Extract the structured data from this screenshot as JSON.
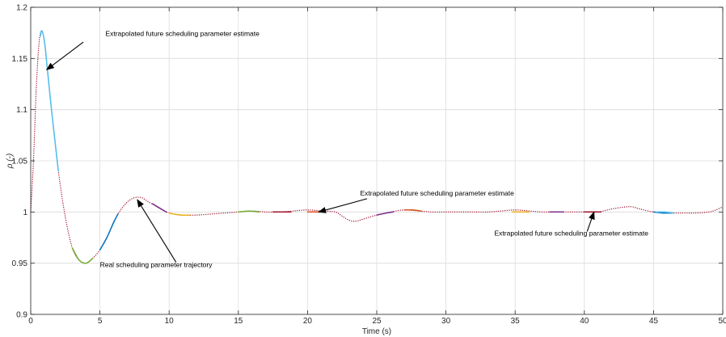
{
  "chart_data": {
    "type": "line",
    "title": "",
    "xlabel": "Time (s)",
    "ylabel": "ρ (-)",
    "xlim": [
      0,
      50
    ],
    "ylim": [
      0.9,
      1.2
    ],
    "xticks": [
      0,
      5,
      10,
      15,
      20,
      25,
      30,
      35,
      40,
      45,
      50
    ],
    "yticks": [
      0.9,
      0.95,
      1,
      1.05,
      1.1,
      1.15,
      1.2
    ],
    "grid": true,
    "legend": "none",
    "series": [
      {
        "name": "",
        "color": "#a2142f",
        "style": "dotted",
        "points": [
          [
            0,
            1.0
          ],
          [
            0.2,
            1.05
          ],
          [
            0.4,
            1.12
          ],
          [
            0.6,
            1.165
          ],
          [
            0.8,
            1.177
          ],
          [
            1.0,
            1.165
          ],
          [
            1.2,
            1.14
          ],
          [
            1.5,
            1.1
          ],
          [
            2.0,
            1.04
          ],
          [
            2.5,
            0.995
          ],
          [
            3.0,
            0.965
          ],
          [
            3.5,
            0.953
          ],
          [
            4.0,
            0.95
          ],
          [
            4.5,
            0.955
          ],
          [
            5.0,
            0.963
          ],
          [
            5.5,
            0.975
          ],
          [
            6.0,
            0.99
          ],
          [
            6.5,
            1.002
          ],
          [
            7.0,
            1.01
          ],
          [
            7.5,
            1.014
          ],
          [
            8.0,
            1.014
          ],
          [
            8.5,
            1.01
          ],
          [
            9.0,
            1.006
          ],
          [
            9.5,
            1.002
          ],
          [
            10.0,
            0.999
          ],
          [
            11.0,
            0.997
          ],
          [
            12.0,
            0.997
          ],
          [
            13.0,
            0.998
          ],
          [
            14.0,
            0.999
          ],
          [
            15.0,
            1.0
          ],
          [
            16.0,
            1.001
          ],
          [
            17.0,
            1.0
          ],
          [
            18.0,
            1.0
          ],
          [
            19.0,
            1.001
          ],
          [
            20.0,
            1.002
          ],
          [
            21.0,
            1.001
          ],
          [
            22.0,
            1.0
          ],
          [
            22.5,
            0.996
          ],
          [
            23.0,
            0.992
          ],
          [
            23.5,
            0.991
          ],
          [
            24.0,
            0.993
          ],
          [
            25.0,
            0.997
          ],
          [
            26.0,
            1.0
          ],
          [
            27.0,
            1.002
          ],
          [
            28.0,
            1.001
          ],
          [
            29.0,
            1.0
          ],
          [
            30.0,
            1.0
          ],
          [
            31.0,
            1.0
          ],
          [
            32.0,
            1.0
          ],
          [
            33.0,
            1.0
          ],
          [
            34.0,
            1.001
          ],
          [
            35.0,
            1.002
          ],
          [
            36.0,
            1.001
          ],
          [
            37.0,
            1.0
          ],
          [
            38.0,
            1.0
          ],
          [
            39.0,
            1.0
          ],
          [
            40.0,
            1.0
          ],
          [
            41.0,
            1.0
          ],
          [
            42.0,
            1.003
          ],
          [
            43.0,
            1.005
          ],
          [
            43.5,
            1.005
          ],
          [
            44.0,
            1.003
          ],
          [
            45.0,
            1.0
          ],
          [
            46.0,
            0.999
          ],
          [
            47.0,
            0.999
          ],
          [
            48.0,
            0.999
          ],
          [
            49.0,
            1.0
          ],
          [
            49.5,
            1.002
          ],
          [
            50.0,
            1.005
          ]
        ]
      },
      {
        "name": "",
        "color": "#4dbeee",
        "style": "solid",
        "points": [
          [
            0.7,
            1.172
          ],
          [
            0.8,
            1.177
          ],
          [
            1.0,
            1.166
          ],
          [
            1.2,
            1.14
          ],
          [
            1.5,
            1.1
          ],
          [
            2.0,
            1.04
          ]
        ]
      },
      {
        "name": "",
        "color": "#77ac30",
        "style": "solid",
        "points": [
          [
            3.0,
            0.965
          ],
          [
            3.5,
            0.953
          ],
          [
            4.0,
            0.95
          ],
          [
            4.5,
            0.955
          ]
        ]
      },
      {
        "name": "",
        "color": "#0072bd",
        "style": "solid",
        "points": [
          [
            5.0,
            0.963
          ],
          [
            5.5,
            0.975
          ],
          [
            6.0,
            0.99
          ],
          [
            6.3,
            0.998
          ]
        ]
      },
      {
        "name": "",
        "color": "#7e2f8e",
        "style": "solid",
        "points": [
          [
            8.8,
            1.008
          ],
          [
            9.3,
            1.004
          ],
          [
            9.8,
            1.0
          ]
        ]
      },
      {
        "name": "",
        "color": "#edb120",
        "style": "solid",
        "points": [
          [
            10.0,
            0.999
          ],
          [
            10.8,
            0.997
          ],
          [
            11.5,
            0.997
          ]
        ]
      },
      {
        "name": "",
        "color": "#77ac30",
        "style": "solid",
        "points": [
          [
            15.0,
            1.0
          ],
          [
            15.8,
            1.001
          ],
          [
            16.5,
            1.0
          ]
        ]
      },
      {
        "name": "",
        "color": "#a2142f",
        "style": "solid",
        "points": [
          [
            17.5,
            1.0
          ],
          [
            18.2,
            1.0
          ],
          [
            18.8,
            1.0
          ]
        ]
      },
      {
        "name": "",
        "color": "#d95319",
        "style": "solid",
        "points": [
          [
            20.0,
            1.0
          ],
          [
            20.5,
            1.0
          ],
          [
            21.0,
            1.0
          ]
        ]
      },
      {
        "name": "",
        "color": "#7e2f8e",
        "style": "solid",
        "points": [
          [
            25.0,
            0.997
          ],
          [
            25.7,
            0.999
          ],
          [
            26.2,
            1.0
          ]
        ]
      },
      {
        "name": "",
        "color": "#d95319",
        "style": "solid",
        "points": [
          [
            27.0,
            1.002
          ],
          [
            27.6,
            1.002
          ],
          [
            28.2,
            1.001
          ]
        ]
      },
      {
        "name": "",
        "color": "#edb120",
        "style": "solid",
        "points": [
          [
            34.8,
            1.0
          ],
          [
            35.5,
            1.0
          ],
          [
            36.0,
            1.0
          ]
        ]
      },
      {
        "name": "",
        "color": "#7e2f8e",
        "style": "solid",
        "points": [
          [
            37.5,
            1.0
          ],
          [
            38.0,
            1.0
          ],
          [
            38.5,
            1.0
          ]
        ]
      },
      {
        "name": "",
        "color": "#a2142f",
        "style": "solid",
        "points": [
          [
            40.0,
            1.0
          ],
          [
            40.6,
            1.0
          ],
          [
            41.2,
            1.0
          ]
        ]
      },
      {
        "name": "",
        "color": "#0072bd",
        "style": "solid",
        "points": [
          [
            45.0,
            1.0
          ],
          [
            45.7,
            0.999
          ],
          [
            46.3,
            0.999
          ]
        ]
      },
      {
        "name": "",
        "color": "#4dbeee",
        "style": "solid",
        "points": [
          [
            45.2,
            1.0
          ],
          [
            45.8,
            1.0
          ],
          [
            46.4,
            0.999
          ]
        ]
      }
    ],
    "annotations": [
      {
        "text": "Extrapolated future scheduling parameter estimate",
        "text_at": [
          5.4,
          1.172
        ],
        "anchor": "start",
        "arrow_from": [
          3.8,
          1.166
        ],
        "arrow_to": [
          1.15,
          1.139
        ]
      },
      {
        "text": "Extrapolated future scheduling parameter estimate",
        "text_at": [
          23.8,
          1.016
        ],
        "anchor": "start",
        "arrow_from": [
          24.3,
          1.013
        ],
        "arrow_to": [
          20.8,
          1.0
        ]
      },
      {
        "text": "Real scheduling parameter trajectory",
        "text_at": [
          5.0,
          0.946
        ],
        "anchor": "start",
        "arrow_from": [
          10.5,
          0.951
        ],
        "arrow_to": [
          7.7,
          1.012
        ]
      },
      {
        "text": "Extrapolated future scheduling parameter estimate",
        "text_at": [
          33.5,
          0.977
        ],
        "anchor": "start",
        "arrow_from": [
          40.2,
          0.981
        ],
        "arrow_to": [
          40.7,
          1.0
        ]
      }
    ]
  }
}
